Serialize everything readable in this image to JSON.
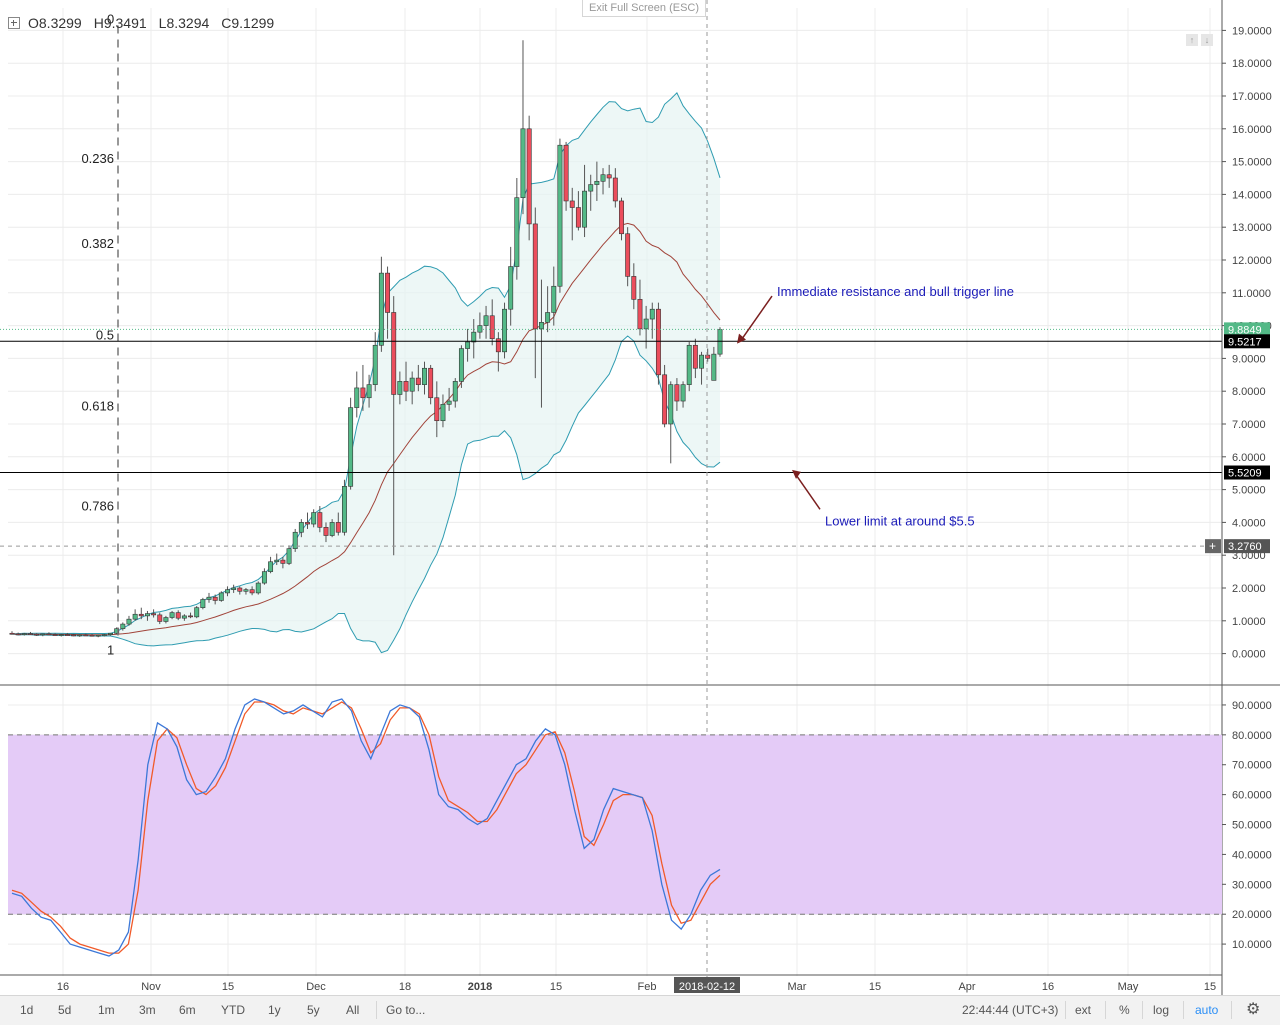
{
  "window": {
    "exit_fullscreen": "Exit Full Screen (ESC)"
  },
  "ohlc": {
    "open": "O8.3299",
    "high": "H9.3491",
    "low": "L8.3294",
    "close": "C9.1299"
  },
  "colors": {
    "up": "#53b987",
    "down": "#eb4d5c",
    "bb": "#2f9cb1",
    "ma": "#a1443a",
    "stoch_k": "#3c78d8",
    "stoch_d": "#f15a29",
    "stoch_band": "#e4cbf7",
    "annotation": "#1a1ab8",
    "arrow": "#7b1f1f"
  },
  "chart_data": [
    {
      "type": "candlestick",
      "y_axis_ticks": [
        "19.0000",
        "18.0000",
        "17.0000",
        "16.0000",
        "15.0000",
        "14.0000",
        "13.0000",
        "12.0000",
        "11.0000",
        "10.0000",
        "9.0000",
        "8.0000",
        "7.0000",
        "6.0000",
        "5.0000",
        "4.0000",
        "3.0000",
        "2.0000",
        "1.0000",
        "0.0000"
      ],
      "ylim": [
        -0.5,
        19.5
      ],
      "x_axis_ticks": [
        "16",
        "Nov",
        "15",
        "Dec",
        "18",
        "2018",
        "15",
        "Feb",
        "2018-02-12",
        "Mar",
        "15",
        "Apr",
        "16",
        "May",
        "15"
      ],
      "price_labels": [
        {
          "text": "9.8849",
          "value": 9.8849,
          "style": "last"
        },
        {
          "text": "9.5217",
          "value": 9.5217,
          "style": "line"
        },
        {
          "text": "5.5209",
          "value": 5.5209,
          "style": "line"
        },
        {
          "text": "3.2760",
          "value": 3.276,
          "style": "cursor"
        }
      ],
      "fibonacci_levels": [
        {
          "label": "0",
          "value": 19.15
        },
        {
          "label": "0.236",
          "value": 14.9
        },
        {
          "label": "0.382",
          "value": 12.3
        },
        {
          "label": "0.5",
          "value": 9.52
        },
        {
          "label": "0.618",
          "value": 7.35
        },
        {
          "label": "0.786",
          "value": 4.3
        },
        {
          "label": "1",
          "value": 0.4
        }
      ],
      "horizontal_lines": [
        9.5217,
        5.5209
      ],
      "annotations": [
        {
          "text": "Immediate resistance and bull trigger line"
        },
        {
          "text": "Lower limit at around $5.5"
        }
      ],
      "candles": [
        [
          0.62,
          0.68,
          0.58,
          0.6
        ],
        [
          0.6,
          0.64,
          0.56,
          0.58
        ],
        [
          0.58,
          0.63,
          0.55,
          0.61
        ],
        [
          0.61,
          0.66,
          0.57,
          0.59
        ],
        [
          0.59,
          0.62,
          0.54,
          0.57
        ],
        [
          0.57,
          0.61,
          0.53,
          0.6
        ],
        [
          0.6,
          0.65,
          0.56,
          0.58
        ],
        [
          0.58,
          0.62,
          0.55,
          0.56
        ],
        [
          0.56,
          0.6,
          0.52,
          0.58
        ],
        [
          0.58,
          0.63,
          0.55,
          0.57
        ],
        [
          0.57,
          0.6,
          0.53,
          0.55
        ],
        [
          0.55,
          0.59,
          0.51,
          0.57
        ],
        [
          0.57,
          0.61,
          0.54,
          0.56
        ],
        [
          0.56,
          0.6,
          0.52,
          0.54
        ],
        [
          0.54,
          0.58,
          0.5,
          0.56
        ],
        [
          0.56,
          0.6,
          0.52,
          0.58
        ],
        [
          0.58,
          0.63,
          0.55,
          0.62
        ],
        [
          0.62,
          0.8,
          0.58,
          0.76
        ],
        [
          0.76,
          0.95,
          0.7,
          0.9
        ],
        [
          0.9,
          1.15,
          0.85,
          1.05
        ],
        [
          1.05,
          1.35,
          1.0,
          1.2
        ],
        [
          1.2,
          1.4,
          1.05,
          1.15
        ],
        [
          1.15,
          1.3,
          1.0,
          1.22
        ],
        [
          1.22,
          1.35,
          1.1,
          1.18
        ],
        [
          1.18,
          1.25,
          0.9,
          0.98
        ],
        [
          0.98,
          1.15,
          0.92,
          1.1
        ],
        [
          1.1,
          1.3,
          1.05,
          1.25
        ],
        [
          1.25,
          1.32,
          1.02,
          1.08
        ],
        [
          1.08,
          1.2,
          1.0,
          1.15
        ],
        [
          1.15,
          1.25,
          1.08,
          1.12
        ],
        [
          1.12,
          1.45,
          1.08,
          1.4
        ],
        [
          1.4,
          1.7,
          1.35,
          1.65
        ],
        [
          1.65,
          1.85,
          1.55,
          1.72
        ],
        [
          1.72,
          1.8,
          1.5,
          1.62
        ],
        [
          1.62,
          1.9,
          1.58,
          1.85
        ],
        [
          1.85,
          2.05,
          1.75,
          1.95
        ],
        [
          1.95,
          2.1,
          1.85,
          2.0
        ],
        [
          2.0,
          2.05,
          1.8,
          1.9
        ],
        [
          1.9,
          2.0,
          1.8,
          1.95
        ],
        [
          1.95,
          2.05,
          1.78,
          1.85
        ],
        [
          1.85,
          2.2,
          1.8,
          2.15
        ],
        [
          2.15,
          2.6,
          2.1,
          2.5
        ],
        [
          2.5,
          2.95,
          2.45,
          2.8
        ],
        [
          2.8,
          3.05,
          2.7,
          2.85
        ],
        [
          2.85,
          2.95,
          2.6,
          2.75
        ],
        [
          2.75,
          3.3,
          2.7,
          3.2
        ],
        [
          3.2,
          3.8,
          3.1,
          3.7
        ],
        [
          3.7,
          4.1,
          3.55,
          4.0
        ],
        [
          4.0,
          4.3,
          3.8,
          3.95
        ],
        [
          3.95,
          4.4,
          3.85,
          4.3
        ],
        [
          4.3,
          4.5,
          3.7,
          3.85
        ],
        [
          3.85,
          4.0,
          3.4,
          3.6
        ],
        [
          3.6,
          4.1,
          3.55,
          4.0
        ],
        [
          4.0,
          4.3,
          3.6,
          3.7
        ],
        [
          3.7,
          5.3,
          3.6,
          5.1
        ],
        [
          5.1,
          7.8,
          5.0,
          7.5
        ],
        [
          7.5,
          8.6,
          7.2,
          8.1
        ],
        [
          8.1,
          8.8,
          7.4,
          7.8
        ],
        [
          7.8,
          8.5,
          7.5,
          8.2
        ],
        [
          8.2,
          9.8,
          8.0,
          9.4
        ],
        [
          9.4,
          12.1,
          9.2,
          11.6
        ],
        [
          11.6,
          11.8,
          9.6,
          10.4
        ],
        [
          10.4,
          10.9,
          3.0,
          7.9
        ],
        [
          7.9,
          8.6,
          7.6,
          8.3
        ],
        [
          8.3,
          8.9,
          7.7,
          8.0
        ],
        [
          8.0,
          8.6,
          7.6,
          8.4
        ],
        [
          8.4,
          8.8,
          8.0,
          8.2
        ],
        [
          8.2,
          8.9,
          7.9,
          8.7
        ],
        [
          8.7,
          8.8,
          7.6,
          7.8
        ],
        [
          7.8,
          8.3,
          6.6,
          7.1
        ],
        [
          7.1,
          7.9,
          6.9,
          7.6
        ],
        [
          7.6,
          8.1,
          7.4,
          7.7
        ],
        [
          7.7,
          8.4,
          7.5,
          8.3
        ],
        [
          8.3,
          9.4,
          8.1,
          9.3
        ],
        [
          9.3,
          9.9,
          8.9,
          9.5
        ],
        [
          9.5,
          10.2,
          9.0,
          9.8
        ],
        [
          9.8,
          10.4,
          9.6,
          10.0
        ],
        [
          10.0,
          10.6,
          9.6,
          10.3
        ],
        [
          10.3,
          10.8,
          9.4,
          9.6
        ],
        [
          9.6,
          9.8,
          8.6,
          9.2
        ],
        [
          9.2,
          10.7,
          9.0,
          10.5
        ],
        [
          10.5,
          12.4,
          10.0,
          11.8
        ],
        [
          11.8,
          14.5,
          11.4,
          13.9
        ],
        [
          13.9,
          18.7,
          13.4,
          16.0
        ],
        [
          16.0,
          16.4,
          12.6,
          13.1
        ],
        [
          13.1,
          13.6,
          8.4,
          9.9
        ],
        [
          9.9,
          11.4,
          7.5,
          10.1
        ],
        [
          10.1,
          11.2,
          9.8,
          10.4
        ],
        [
          10.4,
          11.8,
          10.0,
          11.2
        ],
        [
          11.2,
          15.7,
          11.0,
          15.5
        ],
        [
          15.5,
          15.6,
          13.5,
          13.8
        ],
        [
          13.8,
          14.2,
          12.6,
          13.6
        ],
        [
          13.6,
          14.1,
          12.9,
          13.0
        ],
        [
          13.0,
          14.9,
          12.7,
          14.1
        ],
        [
          14.1,
          14.6,
          13.5,
          14.3
        ],
        [
          14.3,
          15.0,
          13.8,
          14.4
        ],
        [
          14.4,
          14.8,
          14.0,
          14.6
        ],
        [
          14.6,
          14.9,
          14.2,
          14.5
        ],
        [
          14.5,
          14.8,
          13.6,
          13.8
        ],
        [
          13.8,
          13.9,
          12.6,
          12.8
        ],
        [
          12.8,
          13.0,
          11.2,
          11.5
        ],
        [
          11.5,
          11.9,
          10.5,
          10.8
        ],
        [
          10.8,
          11.4,
          9.7,
          9.9
        ],
        [
          9.9,
          10.6,
          9.3,
          10.2
        ],
        [
          10.2,
          10.7,
          9.6,
          10.5
        ],
        [
          10.5,
          10.7,
          8.2,
          8.5
        ],
        [
          8.5,
          8.8,
          6.9,
          7.0
        ],
        [
          7.0,
          8.3,
          5.8,
          8.2
        ],
        [
          8.2,
          8.4,
          7.4,
          7.7
        ],
        [
          7.7,
          8.3,
          7.5,
          8.2
        ],
        [
          8.2,
          9.5,
          8.0,
          9.4
        ],
        [
          9.4,
          9.6,
          8.4,
          8.7
        ],
        [
          8.7,
          9.2,
          8.2,
          9.1
        ],
        [
          9.1,
          9.3,
          8.9,
          9.0
        ],
        [
          8.33,
          9.35,
          8.33,
          9.13
        ],
        [
          9.13,
          9.95,
          9.05,
          9.88
        ]
      ]
    },
    {
      "type": "line",
      "name": "stochastic",
      "y_axis_ticks": [
        "90.0000",
        "80.0000",
        "70.0000",
        "60.0000",
        "50.0000",
        "40.0000",
        "30.0000",
        "20.0000",
        "10.0000"
      ],
      "ylim": [
        2,
        95
      ],
      "band": [
        20,
        80
      ],
      "series": [
        {
          "values": [
            27,
            26,
            22,
            19,
            18,
            14,
            10,
            9,
            8,
            7,
            6,
            8,
            14,
            38,
            70,
            84,
            82,
            76,
            65,
            60,
            61,
            66,
            72,
            82,
            90,
            92,
            91,
            89,
            87,
            88,
            90,
            88,
            86,
            91,
            92,
            88,
            78,
            72,
            80,
            88,
            90,
            89,
            86,
            75,
            60,
            56,
            55,
            52,
            50,
            52,
            58,
            64,
            70,
            72,
            78,
            82,
            80,
            70,
            55,
            42,
            45,
            55,
            62,
            61,
            60,
            59,
            48,
            30,
            18,
            15,
            20,
            28,
            33,
            35
          ]
        },
        {
          "values": [
            28,
            27,
            24,
            21,
            19,
            16,
            12,
            10,
            9,
            8,
            7,
            7,
            10,
            28,
            58,
            78,
            82,
            79,
            70,
            62,
            60,
            63,
            69,
            78,
            87,
            91,
            91,
            90,
            88,
            87,
            89,
            88,
            87,
            89,
            91,
            89,
            82,
            74,
            77,
            85,
            89,
            89,
            87,
            80,
            66,
            58,
            56,
            54,
            51,
            51,
            55,
            61,
            67,
            70,
            75,
            80,
            81,
            74,
            61,
            46,
            43,
            50,
            58,
            60,
            60,
            59,
            53,
            37,
            23,
            17,
            18,
            24,
            30,
            33
          ]
        }
      ]
    }
  ],
  "toolbar": {
    "ranges": [
      "1d",
      "5d",
      "1m",
      "3m",
      "6m",
      "YTD",
      "1y",
      "5y",
      "All"
    ],
    "goto": "Go to...",
    "time": "22:44:44 (UTC+3)",
    "ext": "ext",
    "percent": "%",
    "log": "log",
    "auto": "auto"
  }
}
